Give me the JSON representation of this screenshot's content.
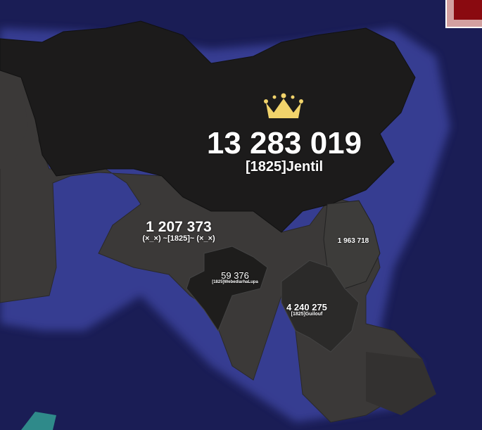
{
  "colors": {
    "ocean": "#1a1d55",
    "coast_glow": "#3a3f9a",
    "land_neutral": "#3b3938",
    "player_top": "#1c1b1b",
    "crown": "#f1d36b",
    "minimap_bg": "#d3a0a0",
    "minimap_view": "#8a0a10"
  },
  "players": [
    {
      "id": "top",
      "count": "13 283 019",
      "name": "[1825]Jentil",
      "crown_icon": "crown-icon"
    },
    {
      "id": "west",
      "count": "1 207 373",
      "name": "(×_×) ~[1825]~ (×_×)"
    },
    {
      "id": "china",
      "count": "1 963 718",
      "name": ""
    },
    {
      "id": "india",
      "count": "59 376",
      "name": "[1825]WebediarhaLupa"
    },
    {
      "id": "sea",
      "count": "4 240 275",
      "name": "[1825]Guilouf"
    }
  ]
}
